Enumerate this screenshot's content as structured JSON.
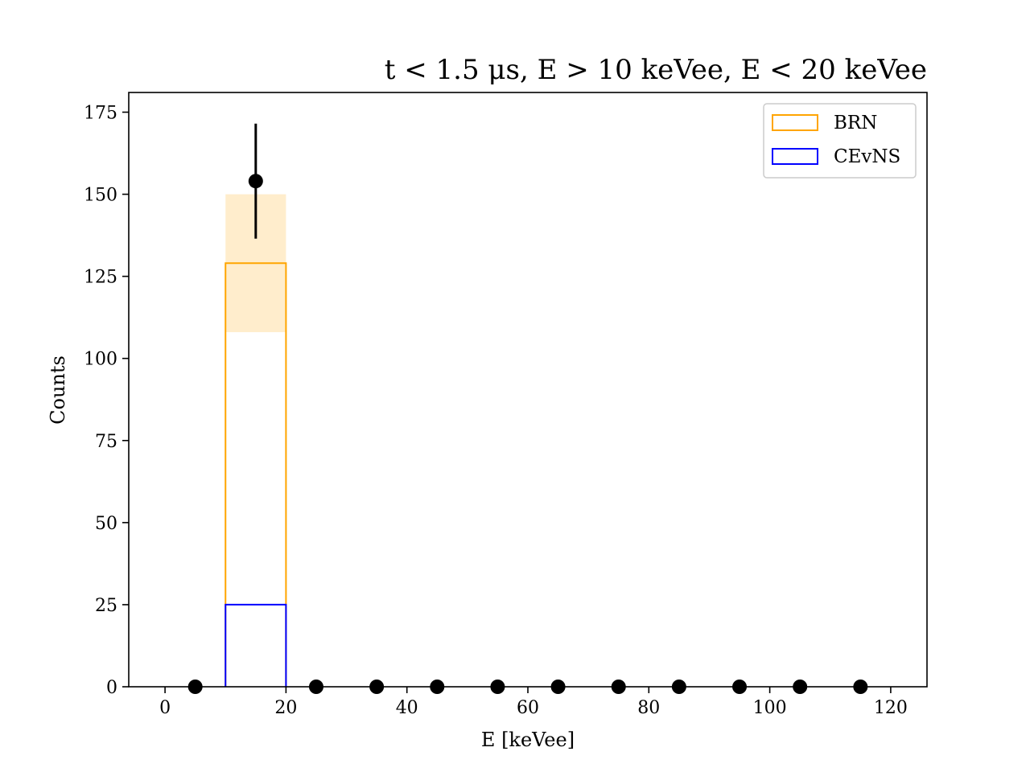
{
  "chart_data": {
    "type": "bar",
    "title": "t < 1.5 μs, E > 10 keVee, E < 20 keVee",
    "xlabel": "E [keVee]",
    "ylabel": "Counts",
    "xlim": [
      -6,
      126
    ],
    "ylim": [
      0,
      181
    ],
    "xticks": [
      0,
      20,
      40,
      60,
      80,
      100,
      120
    ],
    "yticks": [
      0,
      25,
      50,
      75,
      100,
      125,
      150,
      175
    ],
    "grid": false,
    "legend_position": "top-right",
    "series": [
      {
        "name": "BRN",
        "kind": "step-histogram",
        "color": "#ffa500",
        "bin_edges": [
          10,
          20
        ],
        "values": [
          129
        ],
        "band": {
          "low": 108,
          "high": 150,
          "color": "#ffa500",
          "opacity": 0.2
        }
      },
      {
        "name": "CEvNS",
        "kind": "step-histogram",
        "color": "#0000ff",
        "bin_edges": [
          10,
          20
        ],
        "values": [
          25
        ]
      }
    ],
    "points": {
      "color": "#000000",
      "x": [
        5,
        15,
        25,
        35,
        45,
        55,
        65,
        75,
        85,
        95,
        105,
        115
      ],
      "y": [
        0,
        154,
        0,
        0,
        0,
        0,
        0,
        0,
        0,
        0,
        0,
        0
      ],
      "yerr": [
        0,
        17.5,
        0,
        0,
        0,
        0,
        0,
        0,
        0,
        0,
        0,
        0
      ]
    }
  }
}
